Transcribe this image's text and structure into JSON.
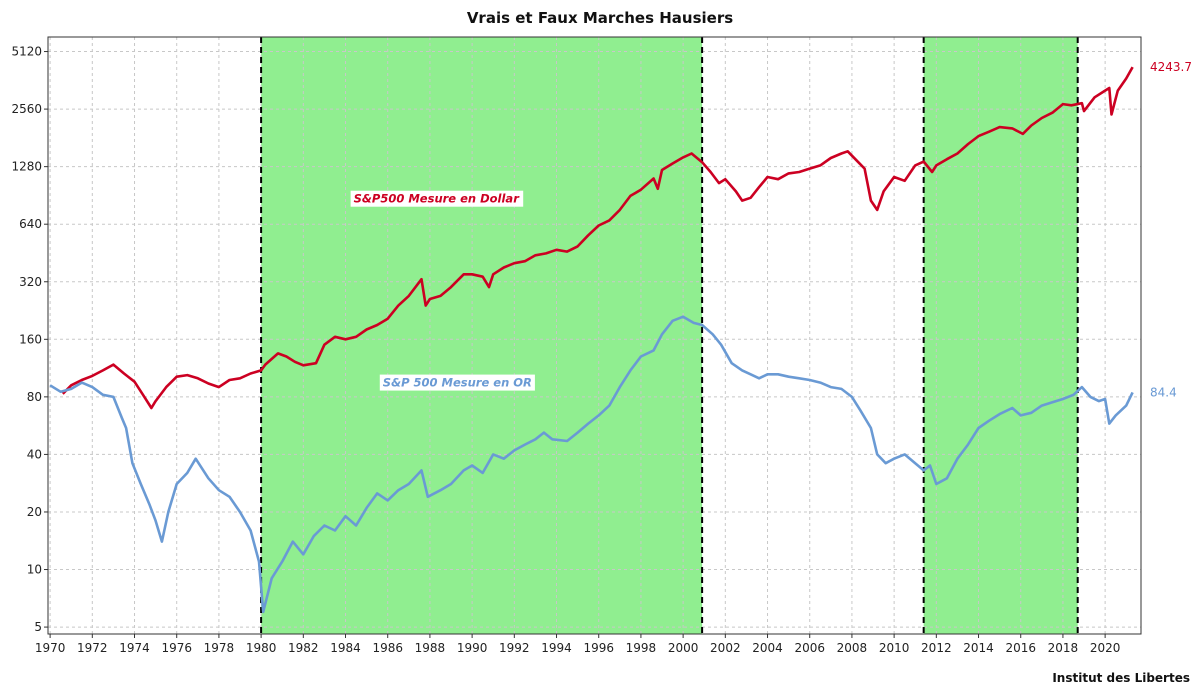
{
  "chart_data": {
    "type": "line",
    "title": "Vrais et Faux Marches Hausiers",
    "source": "Institut des Libertes",
    "y_scale": "log",
    "ylim": [
      4.6,
      6100
    ],
    "xlim": [
      1969.9,
      2021.7
    ],
    "y_ticks": [
      5,
      10,
      20,
      40,
      80,
      160,
      320,
      640,
      1280,
      2560,
      5120
    ],
    "x_ticks": [
      1970,
      1972,
      1974,
      1976,
      1978,
      1980,
      1982,
      1984,
      1986,
      1988,
      1990,
      1992,
      1994,
      1996,
      1998,
      2000,
      2002,
      2004,
      2006,
      2008,
      2010,
      2012,
      2014,
      2016,
      2018,
      2020
    ],
    "grid": true,
    "shaded_periods": [
      {
        "start": 1980.0,
        "end": 2000.9
      },
      {
        "start": 2011.4,
        "end": 2018.7
      }
    ],
    "shade_color": "#90ee90",
    "series": [
      {
        "name": "S&P500 Mesure en Dollar",
        "color": "#cc0022",
        "last_value": "4243.7",
        "x": [
          1970.6,
          1971.0,
          1971.5,
          1972.0,
          1972.5,
          1973.0,
          1973.5,
          1974.0,
          1974.4,
          1974.8,
          1975.0,
          1975.5,
          1976.0,
          1976.5,
          1977.0,
          1977.5,
          1978.0,
          1978.5,
          1979.0,
          1979.5,
          1980.0,
          1980.2,
          1980.8,
          1981.2,
          1981.6,
          1982.0,
          1982.6,
          1983.0,
          1983.5,
          1984.0,
          1984.5,
          1985.0,
          1985.5,
          1986.0,
          1986.5,
          1987.0,
          1987.6,
          1987.8,
          1988.0,
          1988.5,
          1989.0,
          1989.6,
          1990.0,
          1990.5,
          1990.8,
          1991.0,
          1991.5,
          1992.0,
          1992.5,
          1993.0,
          1993.5,
          1994.0,
          1994.5,
          1995.0,
          1995.5,
          1996.0,
          1996.5,
          1997.0,
          1997.5,
          1998.0,
          1998.6,
          1998.8,
          1999.0,
          1999.5,
          2000.0,
          2000.4,
          2000.9,
          2001.3,
          2001.7,
          2002.0,
          2002.5,
          2002.8,
          2003.2,
          2003.6,
          2004.0,
          2004.5,
          2005.0,
          2005.5,
          2006.0,
          2006.5,
          2007.0,
          2007.5,
          2007.8,
          2008.3,
          2008.6,
          2008.9,
          2009.2,
          2009.5,
          2010.0,
          2010.5,
          2011.0,
          2011.4,
          2011.8,
          2012.0,
          2012.5,
          2013.0,
          2013.5,
          2014.0,
          2014.5,
          2015.0,
          2015.6,
          2016.1,
          2016.5,
          2017.0,
          2017.5,
          2018.0,
          2018.4,
          2018.9,
          2019.0,
          2019.5,
          2020.0,
          2020.2,
          2020.3,
          2020.6,
          2021.0,
          2021.3
        ],
        "y": [
          83,
          92,
          98,
          103,
          110,
          118,
          106,
          96,
          82,
          70,
          76,
          90,
          102,
          104,
          100,
          94,
          90,
          98,
          100,
          106,
          110,
          118,
          135,
          130,
          122,
          117,
          120,
          150,
          165,
          160,
          165,
          180,
          190,
          205,
          240,
          270,
          330,
          240,
          260,
          270,
          300,
          350,
          350,
          340,
          300,
          350,
          380,
          400,
          410,
          440,
          450,
          470,
          460,
          490,
          560,
          630,
          670,
          760,
          900,
          970,
          1110,
          980,
          1230,
          1330,
          1430,
          1500,
          1350,
          1200,
          1050,
          1100,
          950,
          850,
          880,
          1000,
          1130,
          1100,
          1180,
          1200,
          1250,
          1300,
          1420,
          1500,
          1540,
          1350,
          1250,
          850,
          760,
          950,
          1130,
          1080,
          1300,
          1360,
          1200,
          1300,
          1400,
          1500,
          1680,
          1850,
          1950,
          2060,
          2030,
          1900,
          2100,
          2300,
          2450,
          2720,
          2680,
          2750,
          2500,
          2950,
          3200,
          3300,
          2400,
          3200,
          3700,
          4243.7
        ]
      },
      {
        "name": "S&P 500 Mesure en OR",
        "color": "#6a9ad4",
        "last_value": "84.4",
        "x": [
          1970.0,
          1970.5,
          1971.0,
          1971.5,
          1972.0,
          1972.5,
          1973.0,
          1973.4,
          1973.6,
          1973.9,
          1974.3,
          1974.7,
          1975.0,
          1975.3,
          1975.6,
          1976.0,
          1976.5,
          1976.9,
          1977.5,
          1978.0,
          1978.5,
          1979.0,
          1979.5,
          1979.9,
          1980.1,
          1980.5,
          1981.0,
          1981.5,
          1982.0,
          1982.5,
          1983.0,
          1983.5,
          1984.0,
          1984.5,
          1985.0,
          1985.5,
          1986.0,
          1986.5,
          1987.0,
          1987.6,
          1987.9,
          1988.5,
          1989.0,
          1989.6,
          1990.0,
          1990.5,
          1991.0,
          1991.5,
          1992.0,
          1992.5,
          1993.0,
          1993.4,
          1993.8,
          1994.5,
          1995.0,
          1995.5,
          1996.0,
          1996.5,
          1997.0,
          1997.5,
          1998.0,
          1998.6,
          1999.0,
          1999.5,
          2000.0,
          2000.5,
          2000.9,
          2001.4,
          2001.8,
          2002.3,
          2002.8,
          2003.2,
          2003.6,
          2004.0,
          2004.5,
          2005.0,
          2005.5,
          2006.0,
          2006.5,
          2007.0,
          2007.5,
          2008.0,
          2008.4,
          2008.9,
          2009.2,
          2009.6,
          2010.0,
          2010.5,
          2011.0,
          2011.4,
          2011.7,
          2012.0,
          2012.5,
          2013.0,
          2013.5,
          2014.0,
          2014.5,
          2015.0,
          2015.6,
          2016.0,
          2016.5,
          2017.0,
          2017.5,
          2018.0,
          2018.5,
          2018.9,
          2019.3,
          2019.7,
          2020.0,
          2020.2,
          2020.5,
          2021.0,
          2021.3
        ],
        "y": [
          92,
          85,
          88,
          95,
          90,
          82,
          80,
          62,
          55,
          36,
          28,
          22,
          18,
          14,
          20,
          28,
          32,
          38,
          30,
          26,
          24,
          20,
          16,
          11,
          6,
          9,
          11,
          14,
          12,
          15,
          17,
          16,
          19,
          17,
          21,
          25,
          23,
          26,
          28,
          33,
          24,
          26,
          28,
          33,
          35,
          32,
          40,
          38,
          42,
          45,
          48,
          52,
          48,
          47,
          52,
          58,
          64,
          72,
          90,
          110,
          130,
          140,
          170,
          200,
          210,
          195,
          190,
          170,
          150,
          120,
          110,
          105,
          100,
          105,
          105,
          102,
          100,
          98,
          95,
          90,
          88,
          80,
          68,
          55,
          40,
          36,
          38,
          40,
          36,
          33,
          35,
          28,
          30,
          38,
          45,
          55,
          60,
          65,
          70,
          64,
          66,
          72,
          75,
          78,
          82,
          90,
          80,
          76,
          78,
          58,
          64,
          72,
          84.4
        ]
      }
    ],
    "annotations": [
      {
        "text": "S&P500 Mesure en Dollar",
        "x": 1988.3,
        "y": 870,
        "color": "#cc0022"
      },
      {
        "text": "S&P 500 Mesure en OR",
        "x": 1989.3,
        "y": 95,
        "color": "#6a9ad4"
      }
    ]
  }
}
